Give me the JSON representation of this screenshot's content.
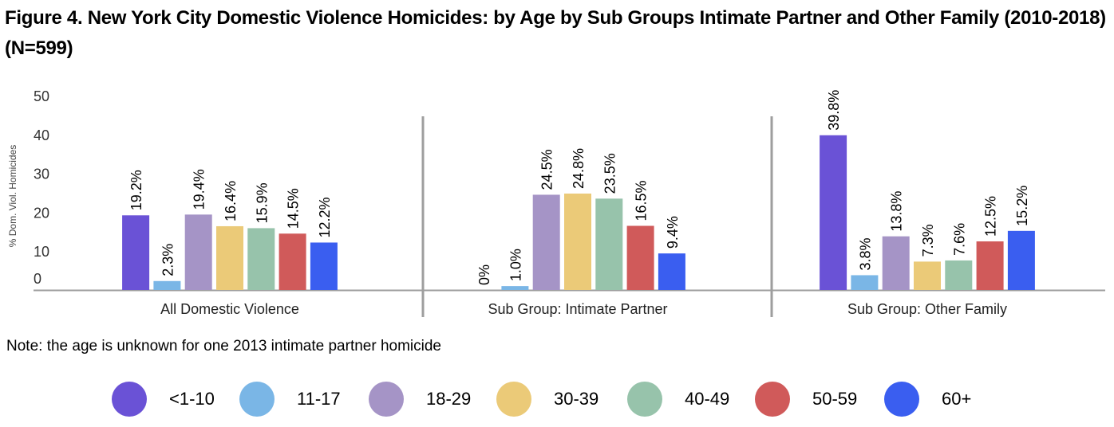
{
  "title": "Figure 4. New York City Domestic Violence Homicides: by Age by Sub Groups Intimate Partner and Other Family (2010-2018) (N=599)",
  "note": "Note: the age is unknown for one 2013 intimate partner homicide",
  "chart_data": {
    "type": "bar",
    "ylabel": "% Dom. Viol. Homicides",
    "ylim": [
      0,
      50
    ],
    "yticks": [
      "0",
      "10",
      "20",
      "30",
      "40",
      "50"
    ],
    "grid": false,
    "legend_position": "bottom",
    "categories": [
      "All Domestic Violence",
      "Sub Group: Intimate Partner",
      "Sub Group: Other Family"
    ],
    "series": [
      {
        "name": "<1-10",
        "color": "#6a52d6",
        "values": [
          19.2,
          0,
          39.8
        ],
        "labels": [
          "19.2%",
          "0%",
          "39.8%"
        ]
      },
      {
        "name": "11-17",
        "color": "#7ab6e6",
        "values": [
          2.3,
          1.0,
          3.8
        ],
        "labels": [
          "2.3%",
          "1.0%",
          "3.8%"
        ]
      },
      {
        "name": "18-29",
        "color": "#a594c6",
        "values": [
          19.4,
          24.5,
          13.8
        ],
        "labels": [
          "19.4%",
          "24.5%",
          "13.8%"
        ]
      },
      {
        "name": "30-39",
        "color": "#ebca78",
        "values": [
          16.4,
          24.8,
          7.3
        ],
        "labels": [
          "16.4%",
          "24.8%",
          "7.3%"
        ]
      },
      {
        "name": "40-49",
        "color": "#97c3ab",
        "values": [
          15.9,
          23.5,
          7.6
        ],
        "labels": [
          "15.9%",
          "23.5%",
          "7.6%"
        ]
      },
      {
        "name": "50-59",
        "color": "#d05a5a",
        "values": [
          14.5,
          16.5,
          12.5
        ],
        "labels": [
          "14.5%",
          "16.5%",
          "12.5%"
        ]
      },
      {
        "name": "60+",
        "color": "#3a5ef0",
        "values": [
          12.2,
          9.4,
          15.2
        ],
        "labels": [
          "12.2%",
          "9.4%",
          "15.2%"
        ]
      }
    ]
  }
}
